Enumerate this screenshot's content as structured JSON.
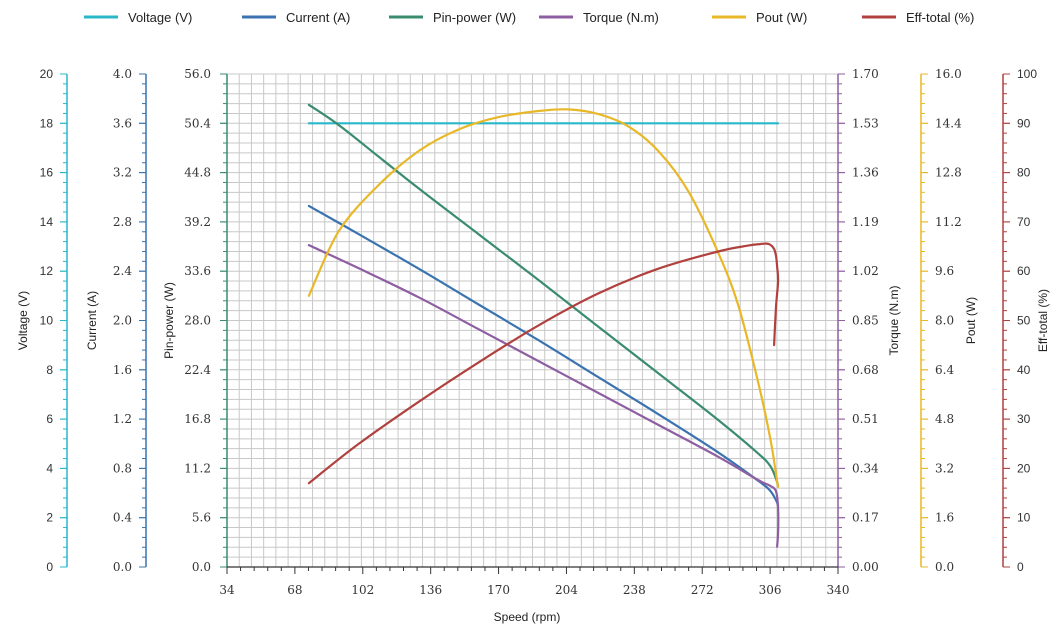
{
  "chart_data": {
    "type": "line",
    "xlabel": "Speed (rpm)",
    "x_ticks": [
      "34",
      "68",
      "102",
      "136",
      "170",
      "204",
      "238",
      "272",
      "306",
      "340"
    ],
    "xlim": [
      34,
      340
    ],
    "grid": true,
    "legend_position": "top",
    "axes": [
      {
        "id": "voltage",
        "title": "Voltage (V)",
        "side": "left",
        "min": 0,
        "max": 20,
        "ticks": [
          "0",
          "2",
          "4",
          "6",
          "8",
          "10",
          "12",
          "14",
          "16",
          "18",
          "20"
        ],
        "color": "#29b7c9"
      },
      {
        "id": "current",
        "title": "Current (A)",
        "side": "left",
        "min": 0,
        "max": 4.0,
        "ticks": [
          "0.0",
          "0.4",
          "0.8",
          "1.2",
          "1.6",
          "2.0",
          "2.4",
          "2.8",
          "3.2",
          "3.6",
          "4.0"
        ],
        "color": "#3a73b0"
      },
      {
        "id": "pin",
        "title": "Pin-power (W)",
        "side": "left",
        "min": 0,
        "max": 56,
        "ticks": [
          "0.0",
          "5.6",
          "11.2",
          "16.8",
          "22.4",
          "28.0",
          "33.6",
          "39.2",
          "44.8",
          "50.4",
          "56.0"
        ],
        "color": "#3a8c6e"
      },
      {
        "id": "torque",
        "title": "Torque (N.m)",
        "side": "right",
        "min": 0,
        "max": 1.7,
        "ticks": [
          "0.00",
          "0.17",
          "0.34",
          "0.51",
          "0.68",
          "0.85",
          "1.02",
          "1.19",
          "1.36",
          "1.53",
          "1.70"
        ],
        "color": "#8e5ea2"
      },
      {
        "id": "pout",
        "title": "Pout (W)",
        "side": "right",
        "min": 0,
        "max": 16,
        "ticks": [
          "0.0",
          "1.6",
          "3.2",
          "4.8",
          "6.4",
          "8.0",
          "9.6",
          "11.2",
          "12.8",
          "14.4",
          "16.0"
        ],
        "color": "#e8b828"
      },
      {
        "id": "eff",
        "title": "Eff-total (%)",
        "side": "right",
        "min": 0,
        "max": 100,
        "ticks": [
          "0",
          "10",
          "20",
          "30",
          "40",
          "50",
          "60",
          "70",
          "80",
          "90",
          "100"
        ],
        "color": "#b0413e"
      }
    ],
    "series": [
      {
        "name": "Voltage (V)",
        "axis": "voltage",
        "color": "#29b7c9",
        "x": [
          75,
          310
        ],
        "y": [
          18,
          18
        ]
      },
      {
        "name": "Current (A)",
        "axis": "current",
        "color": "#3a73b0",
        "x": [
          75,
          100,
          130,
          160,
          190,
          220,
          250,
          280,
          300,
          306,
          309,
          310
        ],
        "y": [
          2.93,
          2.7,
          2.42,
          2.13,
          1.84,
          1.54,
          1.24,
          0.93,
          0.7,
          0.62,
          0.54,
          0.5
        ]
      },
      {
        "name": "Pin-power (W)",
        "axis": "pin",
        "color": "#3a8c6e",
        "x": [
          75,
          90,
          110,
          130,
          160,
          190,
          220,
          250,
          280,
          300,
          306,
          309,
          310
        ],
        "y": [
          52.5,
          50.2,
          46.6,
          43.0,
          37.8,
          32.6,
          27.3,
          22.0,
          16.7,
          12.9,
          11.5,
          10.0,
          9.2
        ]
      },
      {
        "name": "Torque (N.m)",
        "axis": "torque",
        "color": "#8e5ea2",
        "x": [
          75,
          100,
          130,
          160,
          190,
          220,
          250,
          280,
          300,
          306,
          309,
          310,
          310,
          309.5
        ],
        "y": [
          1.11,
          1.03,
          0.93,
          0.82,
          0.71,
          0.6,
          0.49,
          0.38,
          0.3,
          0.28,
          0.26,
          0.2,
          0.12,
          0.07
        ]
      },
      {
        "name": "Pout (W)",
        "axis": "pout",
        "color": "#e8b828",
        "x": [
          75,
          90,
          110,
          130,
          150,
          170,
          190,
          205,
          220,
          235,
          250,
          265,
          280,
          290,
          300,
          306,
          309,
          310
        ],
        "y": [
          8.8,
          10.9,
          12.4,
          13.5,
          14.2,
          14.6,
          14.8,
          14.85,
          14.7,
          14.3,
          13.5,
          12.2,
          10.2,
          8.5,
          6.0,
          4.2,
          3.0,
          2.6
        ]
      },
      {
        "name": "Eff-total (%)",
        "axis": "eff",
        "color": "#b0413e",
        "x": [
          75,
          100,
          130,
          160,
          190,
          220,
          250,
          280,
          295,
          301,
          304,
          306,
          308,
          309,
          309.5,
          310,
          309,
          308
        ],
        "y": [
          17,
          25,
          33.5,
          41.5,
          49,
          55.5,
          60.5,
          64,
          65.2,
          65.5,
          65.6,
          65.4,
          64.5,
          63,
          61,
          58,
          53,
          45
        ]
      }
    ]
  }
}
